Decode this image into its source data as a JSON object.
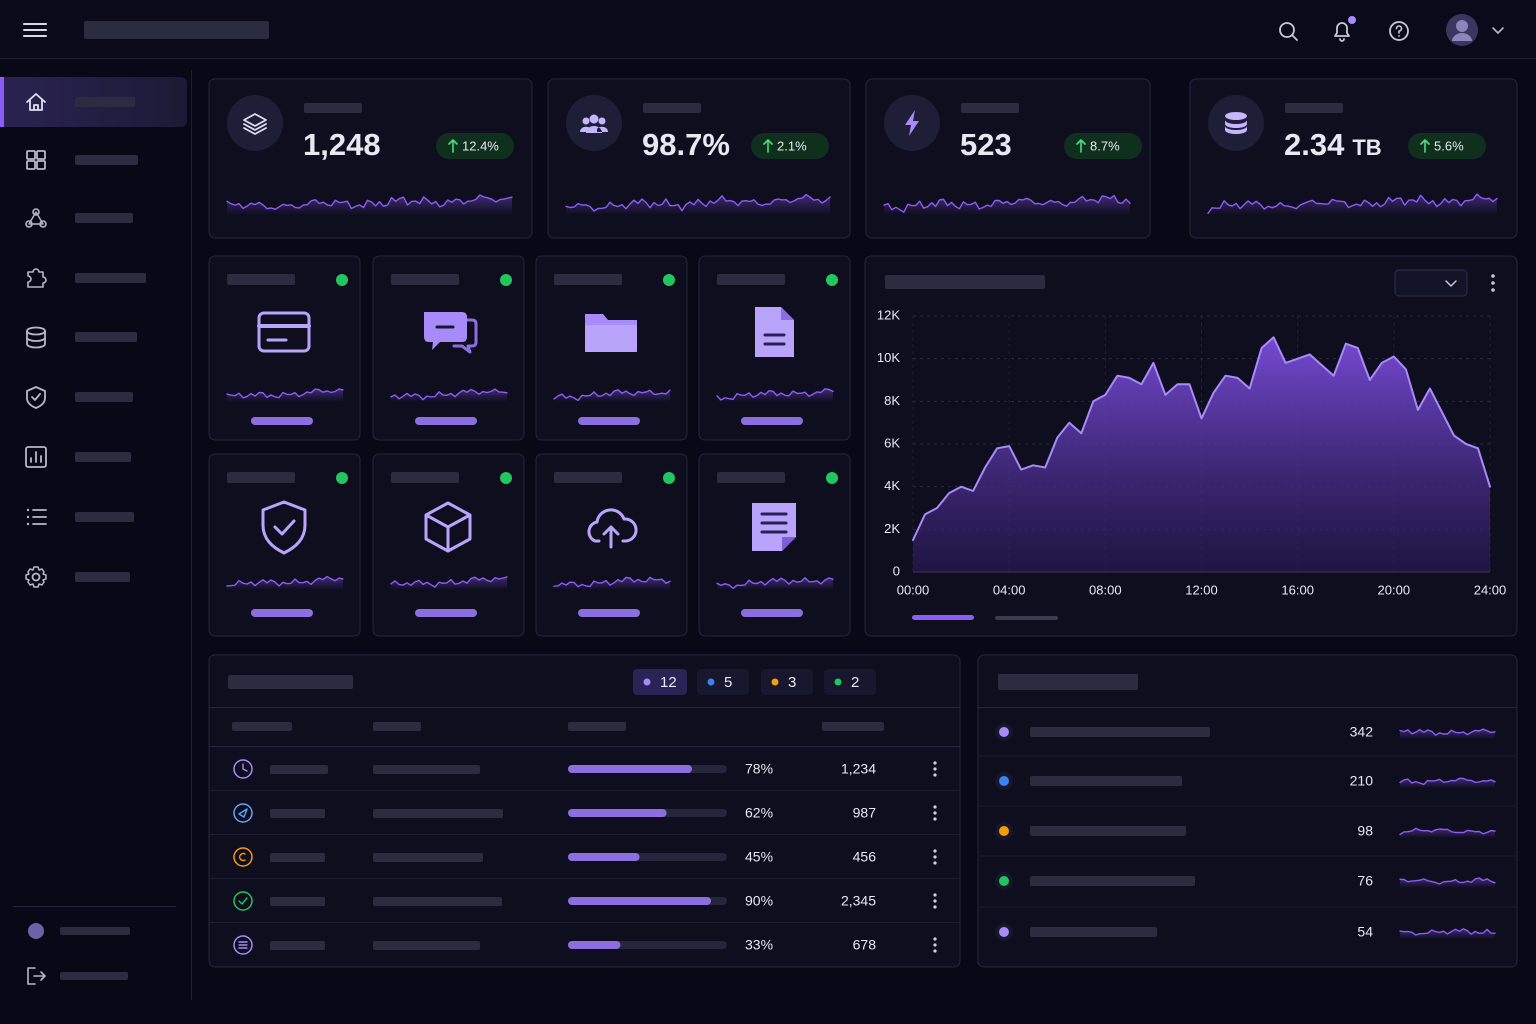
{
  "kpis": [
    {
      "value": "1,248",
      "delta": "12.4%"
    },
    {
      "value": "98.7%",
      "delta": "2.1%"
    },
    {
      "value": "523",
      "delta": "8.7%"
    },
    {
      "value": "2.34",
      "unit": "TB",
      "delta": "5.6%"
    }
  ],
  "chart_data": {
    "type": "area",
    "color": "#8b5cf6",
    "grid": true,
    "x": [
      0,
      0.5,
      1,
      1.5,
      2,
      2.5,
      3,
      3.5,
      4,
      4.5,
      5,
      5.5,
      6,
      6.5,
      7,
      7.5,
      8,
      8.5,
      9,
      9.5,
      10,
      10.5,
      11,
      11.5,
      12,
      12.5,
      13,
      13.5,
      14,
      14.5,
      15,
      15.5,
      16,
      16.5,
      17,
      17.5,
      18,
      18.5,
      19,
      19.5,
      20,
      20.5,
      21,
      21.5,
      22,
      22.5,
      23,
      23.5,
      24
    ],
    "values": [
      1500,
      2700,
      3000,
      3700,
      4000,
      3800,
      4900,
      5800,
      5900,
      4800,
      5000,
      4900,
      6300,
      7000,
      6500,
      8000,
      8300,
      9200,
      9100,
      8800,
      9800,
      8300,
      8800,
      8800,
      7200,
      8400,
      9200,
      9100,
      8600,
      10500,
      11000,
      9800,
      10000,
      10200,
      9700,
      9200,
      10700,
      10500,
      9000,
      9800,
      10100,
      9500,
      7600,
      8600,
      7500,
      6400,
      6000,
      5800,
      4000
    ],
    "xlim": [
      0,
      24
    ],
    "xticks": [
      {
        "value": 0,
        "label": "00:00"
      },
      {
        "value": 4,
        "label": "04:00"
      },
      {
        "value": 8,
        "label": "08:00"
      },
      {
        "value": 12,
        "label": "12:00"
      },
      {
        "value": 16,
        "label": "16:00"
      },
      {
        "value": 20,
        "label": "20:00"
      },
      {
        "value": 24,
        "label": "24:00"
      }
    ],
    "ylim": [
      0,
      12000
    ],
    "yticks": [
      0,
      {
        "value": 2000,
        "label": "2K"
      },
      {
        "value": 4000,
        "label": "4K"
      },
      {
        "value": 6000,
        "label": "6K"
      },
      {
        "value": 8000,
        "label": "8K"
      },
      {
        "value": 10000,
        "label": "10K"
      },
      {
        "value": 12000,
        "label": "12K"
      }
    ]
  },
  "table": {
    "badges": [
      "12",
      "5",
      "3",
      "2"
    ],
    "rows": [
      {
        "progress": 78,
        "progress_label": "78%",
        "count": "1,234"
      },
      {
        "progress": 62,
        "progress_label": "62%",
        "count": "987"
      },
      {
        "progress": 45,
        "progress_label": "45%",
        "count": "456"
      },
      {
        "progress": 90,
        "progress_label": "90%",
        "count": "2,345"
      },
      {
        "progress": 33,
        "progress_label": "33%",
        "count": "678"
      }
    ]
  },
  "list": {
    "rows": [
      {
        "count": "342"
      },
      {
        "count": "210"
      },
      {
        "count": "98"
      },
      {
        "count": "76"
      },
      {
        "count": "54"
      }
    ]
  }
}
